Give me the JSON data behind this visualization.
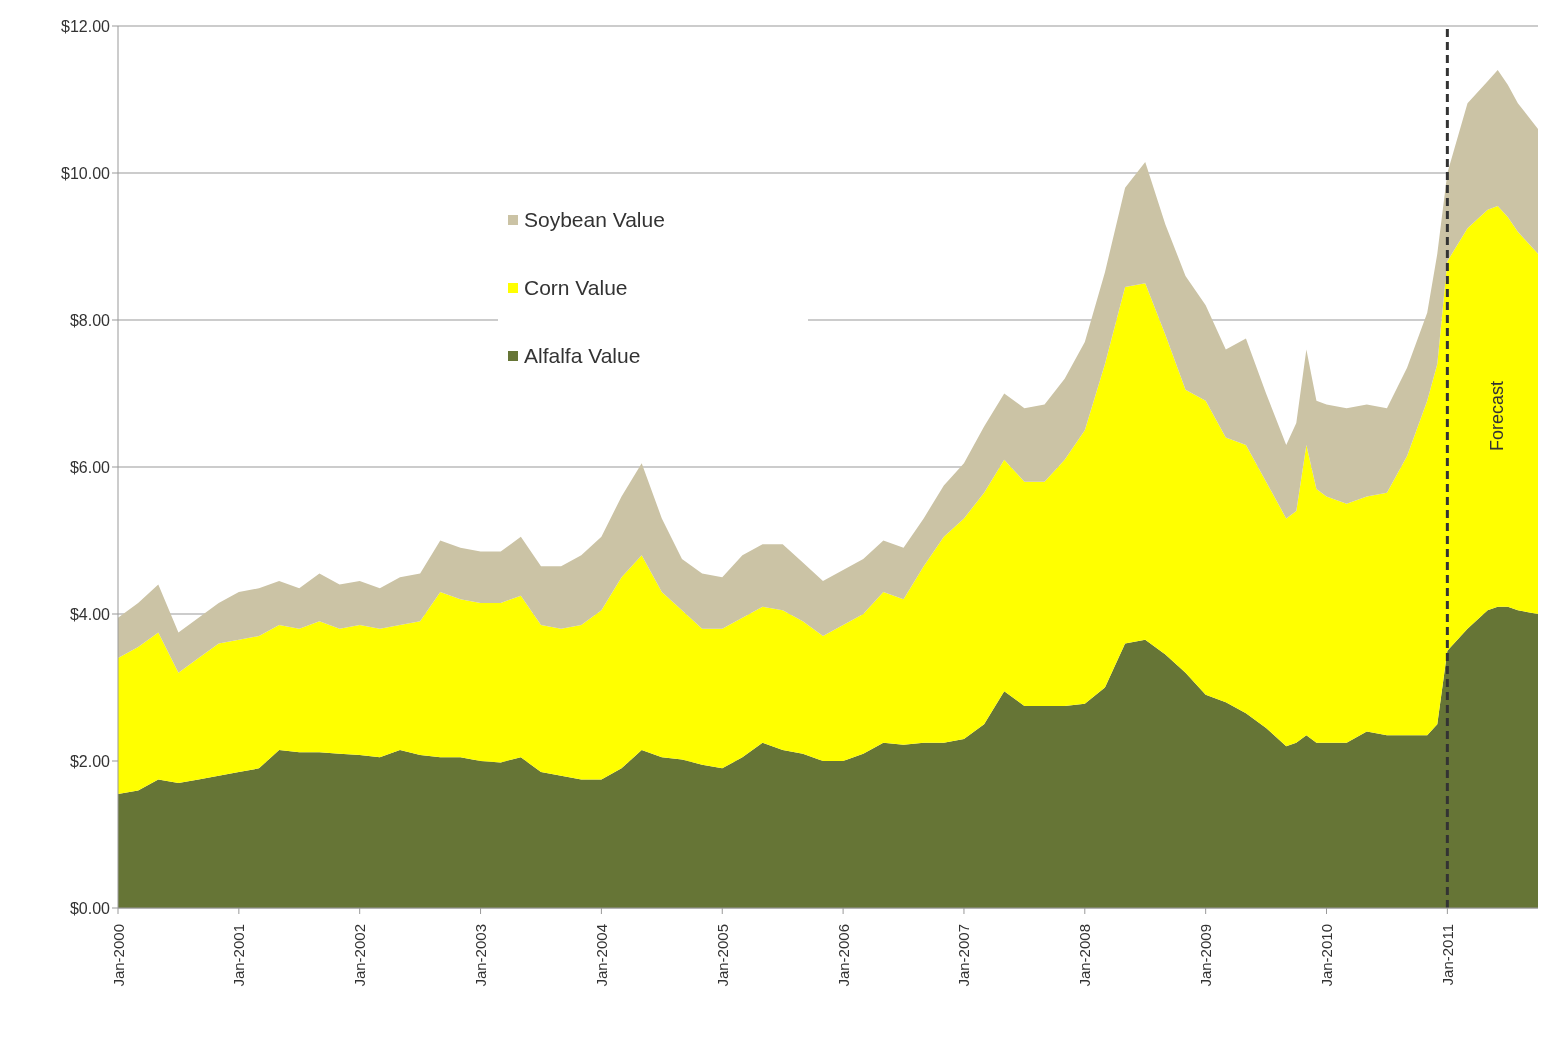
{
  "chart_data": {
    "type": "area",
    "stacked": true,
    "x": [
      "2000-01",
      "2000-03",
      "2000-05",
      "2000-07",
      "2000-09",
      "2000-11",
      "2001-01",
      "2001-03",
      "2001-05",
      "2001-07",
      "2001-09",
      "2001-11",
      "2002-01",
      "2002-03",
      "2002-05",
      "2002-07",
      "2002-09",
      "2002-11",
      "2003-01",
      "2003-03",
      "2003-05",
      "2003-07",
      "2003-09",
      "2003-11",
      "2004-01",
      "2004-03",
      "2004-05",
      "2004-07",
      "2004-09",
      "2004-11",
      "2005-01",
      "2005-03",
      "2005-05",
      "2005-07",
      "2005-09",
      "2005-11",
      "2006-01",
      "2006-03",
      "2006-05",
      "2006-07",
      "2006-09",
      "2006-11",
      "2007-01",
      "2007-03",
      "2007-05",
      "2007-07",
      "2007-09",
      "2007-11",
      "2008-01",
      "2008-03",
      "2008-05",
      "2008-07",
      "2008-09",
      "2008-11",
      "2009-01",
      "2009-03",
      "2009-05",
      "2009-07",
      "2009-09",
      "2009-10",
      "2009-11",
      "2009-12",
      "2010-01",
      "2010-03",
      "2010-05",
      "2010-07",
      "2010-09",
      "2010-11",
      "2010-12",
      "2011-01",
      "2011-03",
      "2011-05",
      "2011-06",
      "2011-07",
      "2011-08",
      "2011-10"
    ],
    "series": [
      {
        "name": "Alfalfa Value",
        "color": "#667536",
        "values": [
          1.55,
          1.6,
          1.75,
          1.7,
          1.75,
          1.8,
          1.85,
          1.9,
          2.15,
          2.12,
          2.12,
          2.1,
          2.08,
          2.05,
          2.15,
          2.08,
          2.05,
          2.05,
          2.0,
          1.98,
          2.05,
          1.85,
          1.8,
          1.75,
          1.75,
          1.9,
          2.15,
          2.05,
          2.02,
          1.95,
          1.9,
          2.05,
          2.25,
          2.15,
          2.1,
          2.0,
          2.0,
          2.1,
          2.25,
          2.22,
          2.25,
          2.25,
          2.3,
          2.5,
          2.95,
          2.75,
          2.75,
          2.75,
          2.78,
          3.0,
          3.6,
          3.65,
          3.45,
          3.2,
          2.9,
          2.8,
          2.65,
          2.45,
          2.2,
          2.25,
          2.35,
          2.25,
          2.25,
          2.25,
          2.4,
          2.35,
          2.35,
          2.35,
          2.5,
          3.5,
          3.8,
          4.05,
          4.1,
          4.1,
          4.05,
          4.0
        ]
      },
      {
        "name": "Corn Value",
        "color": "#ffff00",
        "values": [
          1.85,
          1.95,
          2.0,
          1.5,
          1.65,
          1.8,
          1.8,
          1.8,
          1.7,
          1.68,
          1.78,
          1.7,
          1.77,
          1.75,
          1.7,
          1.82,
          2.25,
          2.15,
          2.15,
          2.17,
          2.2,
          2.0,
          2.0,
          2.1,
          2.3,
          2.6,
          2.65,
          2.25,
          2.03,
          1.85,
          1.9,
          1.9,
          1.85,
          1.9,
          1.8,
          1.7,
          1.85,
          1.9,
          2.05,
          1.98,
          2.4,
          2.8,
          3.0,
          3.15,
          3.15,
          3.05,
          3.05,
          3.35,
          3.72,
          4.4,
          4.85,
          4.85,
          4.35,
          3.85,
          4.0,
          3.6,
          3.65,
          3.35,
          3.1,
          3.15,
          3.95,
          3.45,
          3.35,
          3.25,
          3.2,
          3.3,
          3.8,
          4.55,
          4.9,
          5.3,
          5.45,
          5.45,
          5.45,
          5.3,
          5.15,
          4.9
        ]
      },
      {
        "name": "Soybean Value",
        "color": "#cbc3a5",
        "values": [
          0.55,
          0.6,
          0.65,
          0.55,
          0.55,
          0.55,
          0.65,
          0.65,
          0.6,
          0.55,
          0.65,
          0.6,
          0.6,
          0.55,
          0.65,
          0.65,
          0.7,
          0.7,
          0.7,
          0.7,
          0.8,
          0.8,
          0.85,
          0.95,
          1.0,
          1.1,
          1.25,
          1.0,
          0.7,
          0.75,
          0.7,
          0.85,
          0.85,
          0.9,
          0.8,
          0.75,
          0.75,
          0.75,
          0.7,
          0.7,
          0.65,
          0.7,
          0.75,
          0.9,
          0.9,
          1.0,
          1.05,
          1.1,
          1.2,
          1.25,
          1.35,
          1.65,
          1.5,
          1.55,
          1.3,
          1.2,
          1.45,
          1.2,
          1.0,
          1.2,
          1.3,
          1.2,
          1.25,
          1.3,
          1.25,
          1.15,
          1.2,
          1.2,
          1.5,
          1.2,
          1.7,
          1.75,
          1.85,
          1.8,
          1.75,
          1.7
        ]
      }
    ],
    "xlim": [
      "2000-01",
      "2011-10"
    ],
    "xticks": [
      {
        "value": "2000-01",
        "label": "Jan-2000"
      },
      {
        "value": "2001-01",
        "label": "Jan-2001"
      },
      {
        "value": "2002-01",
        "label": "Jan-2002"
      },
      {
        "value": "2003-01",
        "label": "Jan-2003"
      },
      {
        "value": "2004-01",
        "label": "Jan-2004"
      },
      {
        "value": "2005-01",
        "label": "Jan-2005"
      },
      {
        "value": "2006-01",
        "label": "Jan-2006"
      },
      {
        "value": "2007-01",
        "label": "Jan-2007"
      },
      {
        "value": "2008-01",
        "label": "Jan-2008"
      },
      {
        "value": "2009-01",
        "label": "Jan-2009"
      },
      {
        "value": "2010-01",
        "label": "Jan-2010"
      },
      {
        "value": "2011-01",
        "label": "Jan-2011"
      }
    ],
    "ylim": [
      0,
      12
    ],
    "yticks": [
      {
        "value": 0,
        "label": "$0.00"
      },
      {
        "value": 2,
        "label": "$2.00"
      },
      {
        "value": 4,
        "label": "$4.00"
      },
      {
        "value": 6,
        "label": "$6.00"
      },
      {
        "value": 8,
        "label": "$8.00"
      },
      {
        "value": 10,
        "label": "$10.00"
      },
      {
        "value": 12,
        "label": "$12.00"
      }
    ],
    "ref_lines": [
      {
        "axis": "x",
        "value": "2011-01",
        "label": "Forecast",
        "color": "#333333",
        "line_style": "dashed"
      }
    ],
    "grid": "y",
    "legend": "top"
  }
}
